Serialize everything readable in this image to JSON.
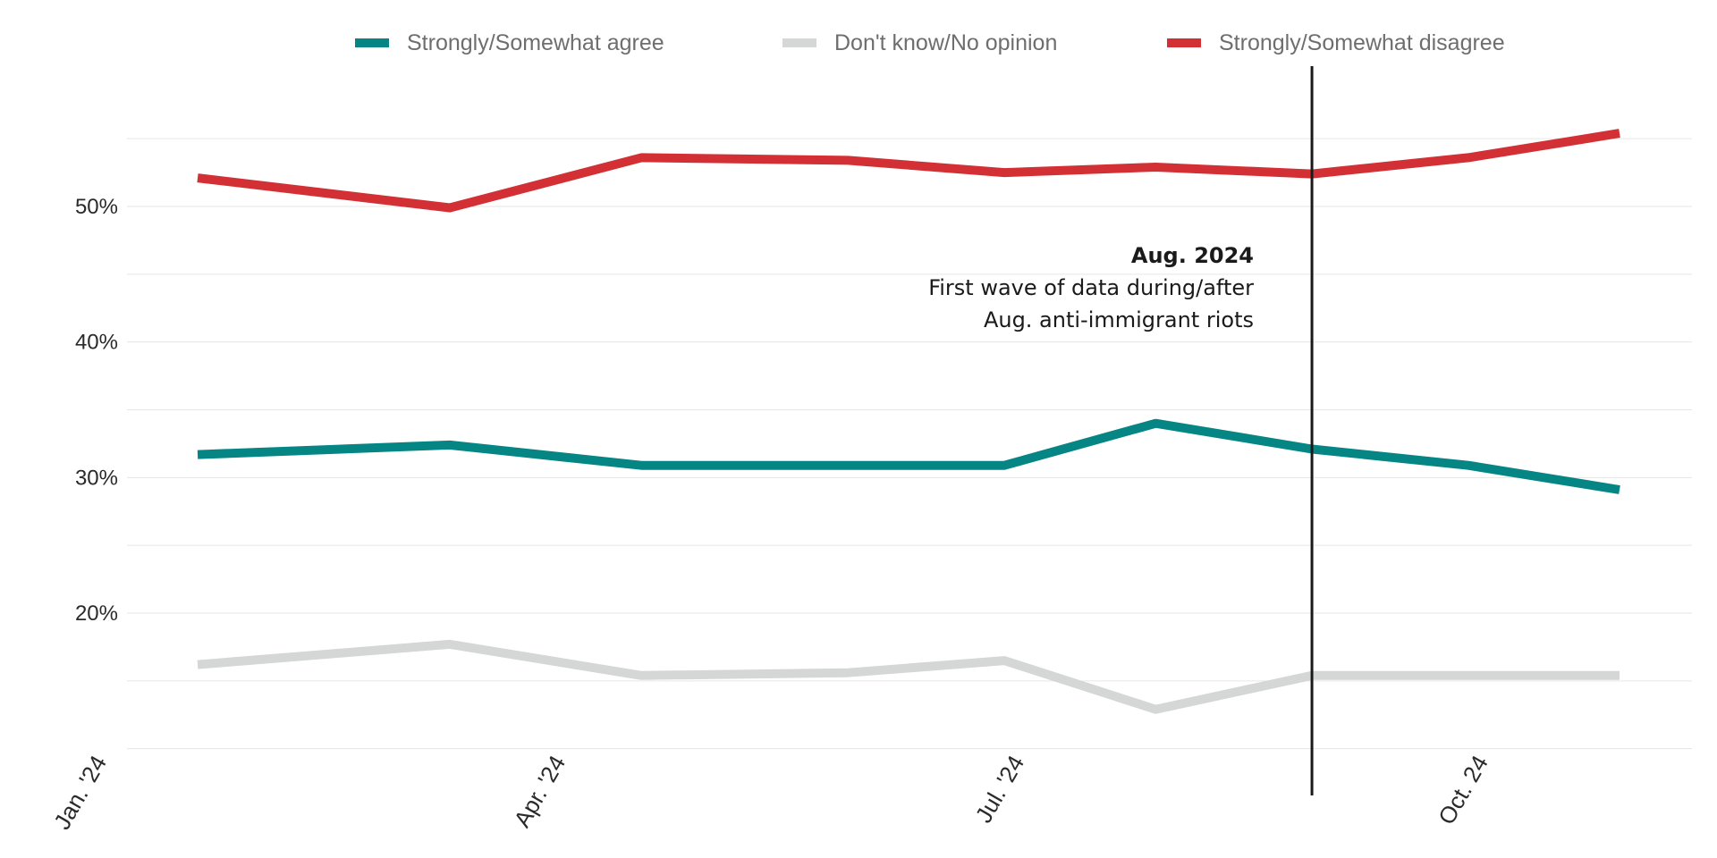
{
  "chart_data": {
    "type": "line",
    "title": "",
    "xlabel": "",
    "ylabel": "",
    "x": [
      "2024-01-20",
      "2024-03-10",
      "2024-04-17",
      "2024-05-28",
      "2024-06-28",
      "2024-07-28",
      "2024-08-28",
      "2024-09-28",
      "2024-10-28"
    ],
    "x_ticks": [
      {
        "label": "Jan. '24",
        "date": "2024-01-01"
      },
      {
        "label": "Apr. '24",
        "date": "2024-04-01"
      },
      {
        "label": "Jul. '24",
        "date": "2024-07-01"
      },
      {
        "label": "Oct. 24",
        "date": "2024-10-01"
      }
    ],
    "y_ticks": [
      {
        "label": "50%",
        "value": 50
      },
      {
        "label": "40%",
        "value": 40
      },
      {
        "label": "30%",
        "value": 30
      },
      {
        "label": "20%",
        "value": 20
      }
    ],
    "ylim": [
      10,
      60
    ],
    "grid": true,
    "legend_position": "top",
    "series": [
      {
        "name": "Strongly/Somewhat agree",
        "color": "#068585",
        "values": [
          31.7,
          32.4,
          30.9,
          30.9,
          30.9,
          34.0,
          32.1,
          30.9,
          29.1
        ]
      },
      {
        "name": "Don't know/No opinion",
        "color": "#d4d7d6",
        "values": [
          16.2,
          17.7,
          15.4,
          15.6,
          16.5,
          12.9,
          15.4,
          15.4,
          15.4
        ]
      },
      {
        "name": "Strongly/Somewhat disagree",
        "color": "#d33035",
        "values": [
          52.1,
          49.9,
          53.6,
          53.4,
          52.5,
          52.9,
          52.4,
          53.6,
          55.4
        ]
      }
    ],
    "annotation": {
      "date": "2024-08-28",
      "title": "Aug. 2024",
      "lines": [
        "First wave of data during/after",
        "Aug. anti-immigrant riots"
      ]
    }
  }
}
